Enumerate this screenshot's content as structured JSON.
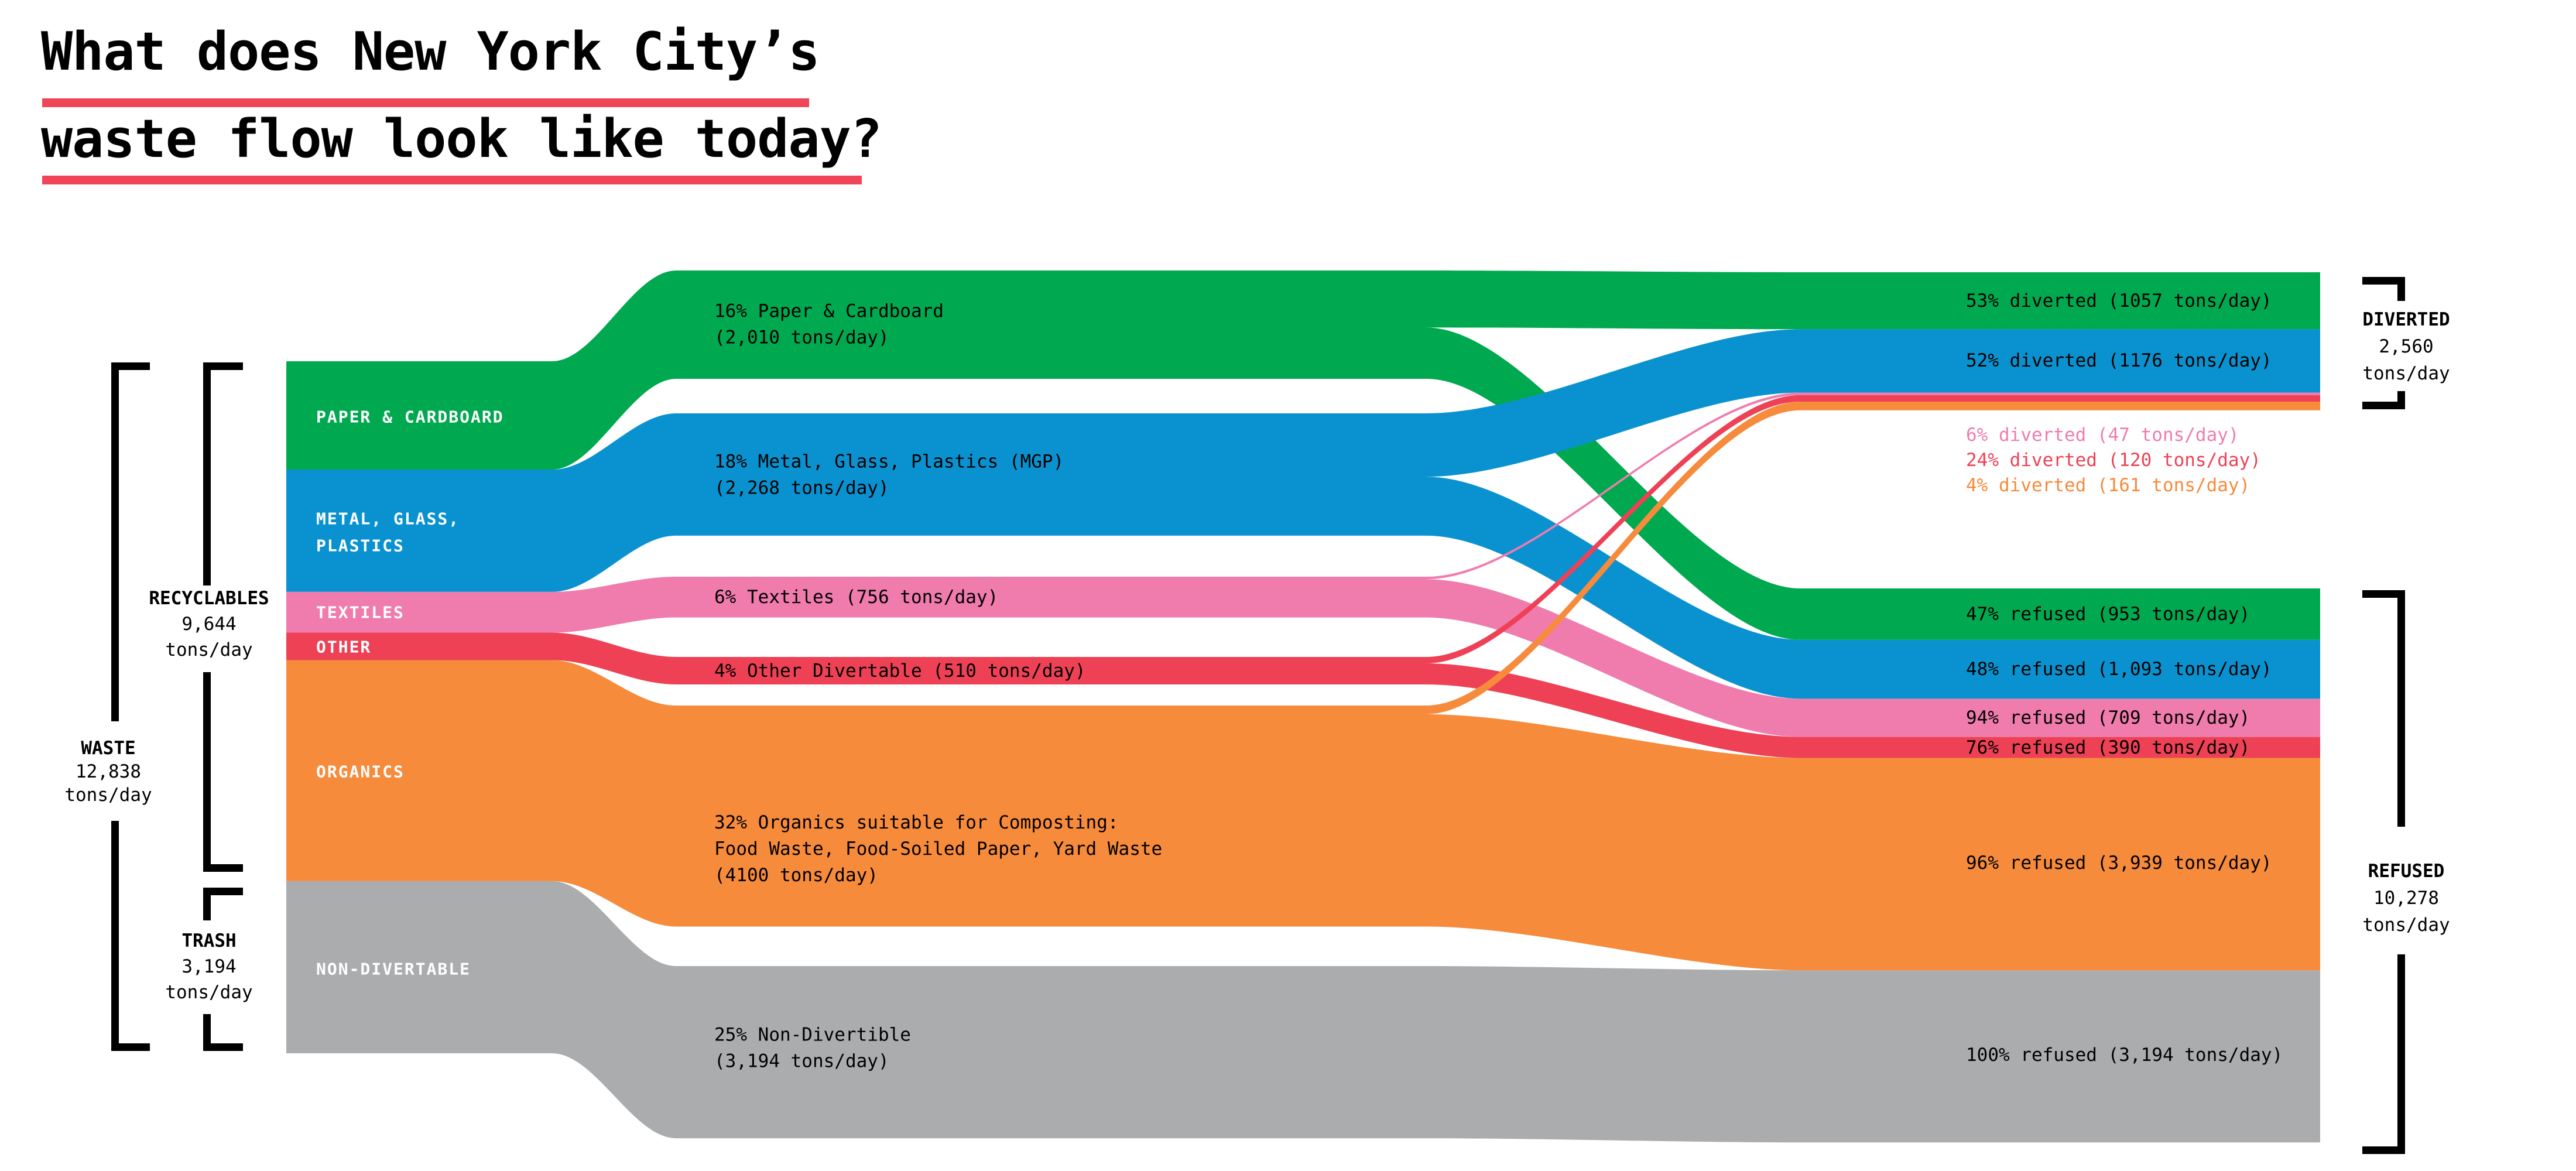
{
  "title": {
    "line1": "What does New York City’s",
    "line2": "waste flow look like today?"
  },
  "colors": {
    "green": "#00A94F",
    "blue": "#0A92D0",
    "pink": "#F07CAE",
    "red": "#EE4156",
    "orange": "#F68B3C",
    "gray": "#ABACAE",
    "underline": "#EF4557",
    "text": "#000000",
    "bar_text": "#FFFFFF"
  },
  "chart_data": {
    "type": "sankey",
    "title": "What does New York City’s waste flow look like today?",
    "unit": "tons/day",
    "source_total": {
      "label": "WASTE",
      "value": "12,838",
      "unit": "tons/day",
      "tons": 12838
    },
    "source_groups": [
      {
        "id": "recyclables",
        "label": "RECYCLABLES",
        "value": "9,644",
        "unit": "tons/day",
        "tons": 9644,
        "members": [
          "paper",
          "mgp",
          "textiles",
          "other",
          "organics"
        ]
      },
      {
        "id": "trash",
        "label": "TRASH",
        "value": "3,194",
        "unit": "tons/day",
        "tons": 3194,
        "members": [
          "non_divertable"
        ]
      }
    ],
    "categories": [
      {
        "id": "paper",
        "color": "green",
        "tons": 2010,
        "bar_label_lines": [
          "PAPER & CARDBOARD"
        ],
        "flow_label_lines": [
          "16% Paper & Cardboard",
          "(2,010 tons/day)"
        ],
        "diverted_tons": 1057,
        "diverted_label": "53% diverted (1057 tons/day)",
        "refused_tons": 953,
        "refused_label": "47% refused (953 tons/day)"
      },
      {
        "id": "mgp",
        "color": "blue",
        "tons": 2268,
        "bar_label_lines": [
          "METAL, GLASS,",
          "PLASTICS"
        ],
        "flow_label_lines": [
          "18% Metal, Glass, Plastics (MGP)",
          "(2,268 tons/day)"
        ],
        "diverted_tons": 1176,
        "diverted_label": "52% diverted (1176 tons/day)",
        "refused_tons": 1093,
        "refused_label": "48% refused (1,093 tons/day)"
      },
      {
        "id": "textiles",
        "color": "pink",
        "tons": 756,
        "bar_label_lines": [
          "TEXTILES"
        ],
        "flow_label_lines": [
          "6% Textiles (756 tons/day)"
        ],
        "diverted_tons": 47,
        "diverted_label": "6% diverted (47 tons/day)",
        "refused_tons": 709,
        "refused_label": "94% refused (709 tons/day)"
      },
      {
        "id": "other",
        "color": "red",
        "tons": 510,
        "bar_label_lines": [
          "OTHER"
        ],
        "flow_label_lines": [
          "4% Other Divertable (510 tons/day)"
        ],
        "diverted_tons": 120,
        "diverted_label": "24% diverted (120 tons/day)",
        "refused_tons": 390,
        "refused_label": "76% refused (390 tons/day)"
      },
      {
        "id": "organics",
        "color": "orange",
        "tons": 4100,
        "bar_label_lines": [
          "ORGANICS"
        ],
        "flow_label_lines": [
          "32% Organics suitable for Composting:",
          "Food Waste, Food-Soiled Paper, Yard Waste",
          "(4100 tons/day)"
        ],
        "diverted_tons": 161,
        "diverted_label": "4% diverted (161 tons/day)",
        "refused_tons": 3939,
        "refused_label": "96% refused (3,939 tons/day)"
      },
      {
        "id": "non_divertable",
        "color": "gray",
        "tons": 3194,
        "bar_label_lines": [
          "NON-DIVERTABLE"
        ],
        "flow_label_lines": [
          "25% Non-Divertible",
          "(3,194 tons/day)"
        ],
        "diverted_tons": 0,
        "diverted_label": "",
        "refused_tons": 3194,
        "refused_label": "100% refused (3,194 tons/day)"
      }
    ],
    "sinks": [
      {
        "id": "diverted",
        "label": "DIVERTED",
        "value": "2,560",
        "unit": "tons/day",
        "tons": 2560
      },
      {
        "id": "refused",
        "label": "REFUSED",
        "value": "10,278",
        "unit": "tons/day",
        "tons": 10278
      }
    ]
  }
}
